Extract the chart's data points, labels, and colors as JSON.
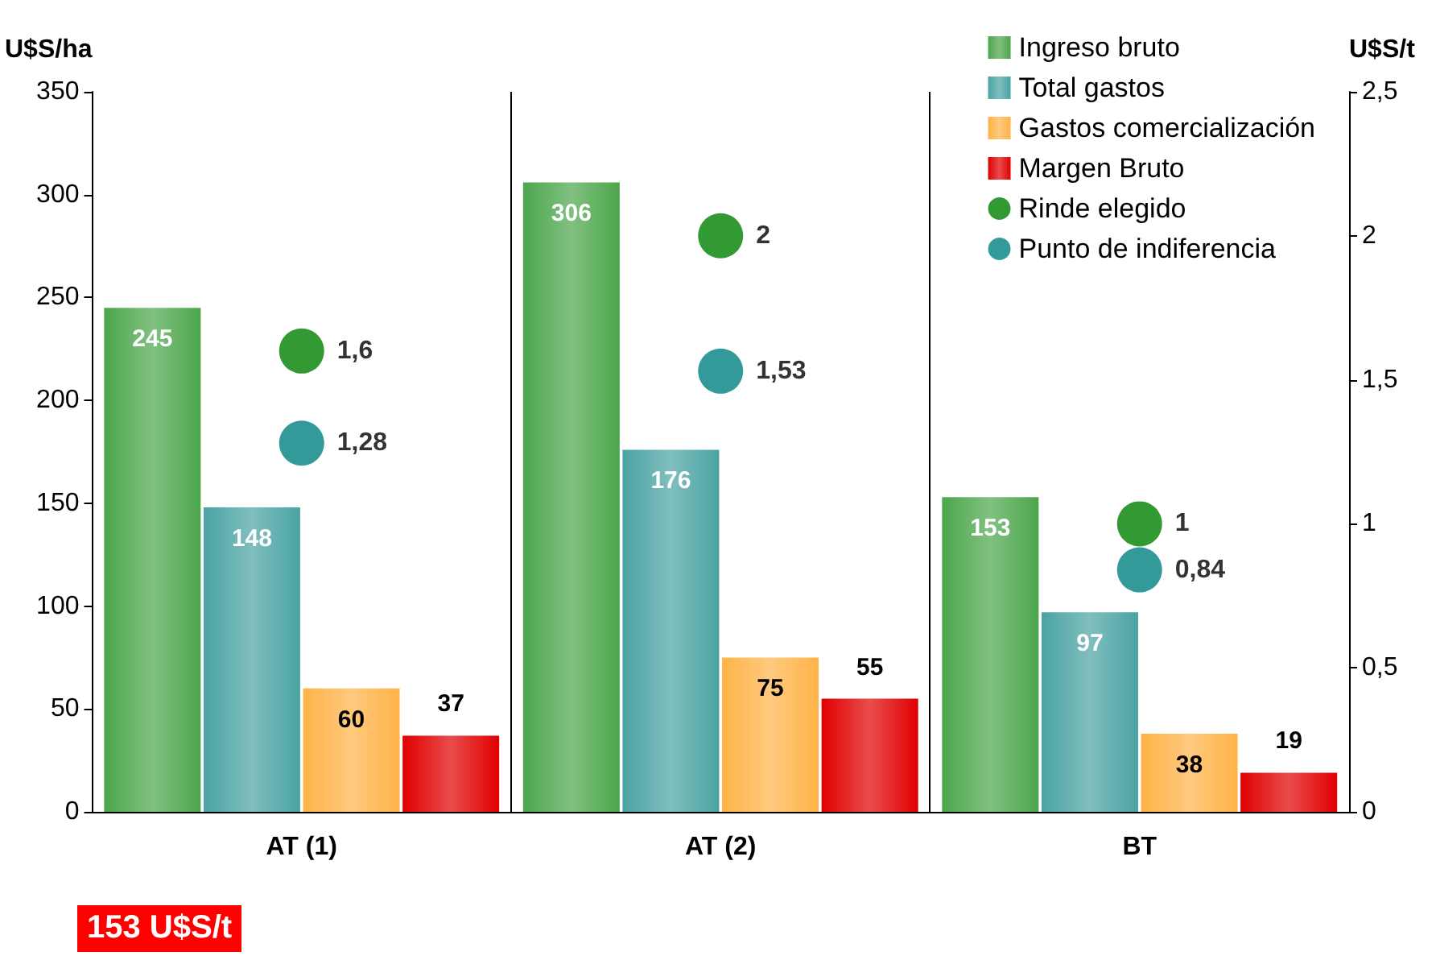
{
  "chart_data": {
    "type": "bar",
    "ylabel": "U$S/ha",
    "y2label": "U$S/t",
    "categories": [
      "AT (1)",
      "AT (2)",
      "BT"
    ],
    "series": [
      {
        "name": "Ingreso bruto",
        "color": "#4ca64c",
        "values": [
          245,
          306,
          153
        ]
      },
      {
        "name": "Total gastos",
        "color": "#4aa3a3",
        "values": [
          148,
          176,
          97
        ]
      },
      {
        "name": "Gastos comercialización",
        "color": "#ffb347",
        "values": [
          60,
          75,
          38
        ]
      },
      {
        "name": "Margen Bruto",
        "color": "#e00000",
        "values": [
          37,
          55,
          19
        ]
      },
      {
        "name": "Rinde elegido",
        "type": "scatter",
        "axis": "y2",
        "color": "#008000",
        "x": [
          "AT (1)",
          "AT (2)",
          "BT"
        ],
        "values": [
          1.6,
          2,
          1
        ],
        "value_labels": [
          "1,6",
          "2",
          "1"
        ]
      },
      {
        "name": "Punto de indiferencia",
        "type": "scatter",
        "axis": "y2",
        "color": "#008080",
        "x": [
          "AT (1)",
          "AT (2)",
          "BT"
        ],
        "values": [
          1.28,
          1.53,
          0.84
        ],
        "value_labels": [
          "1,28",
          "1,53",
          "0,84"
        ]
      }
    ],
    "ylim": [
      0,
      350
    ],
    "yticks": [
      0,
      50,
      100,
      150,
      200,
      250,
      300,
      350
    ],
    "y2lim": [
      0,
      2.5
    ],
    "y2ticks": [
      0,
      {
        "value": 0.5,
        "label": "0,5"
      },
      1,
      {
        "value": 1.5,
        "label": "1,5"
      },
      2,
      {
        "value": 2.5,
        "label": "2,5"
      }
    ],
    "data_labels": true,
    "grid": "x",
    "legend": "top right",
    "marker": "circle",
    "annotations": [
      "153 U$S/t"
    ]
  }
}
